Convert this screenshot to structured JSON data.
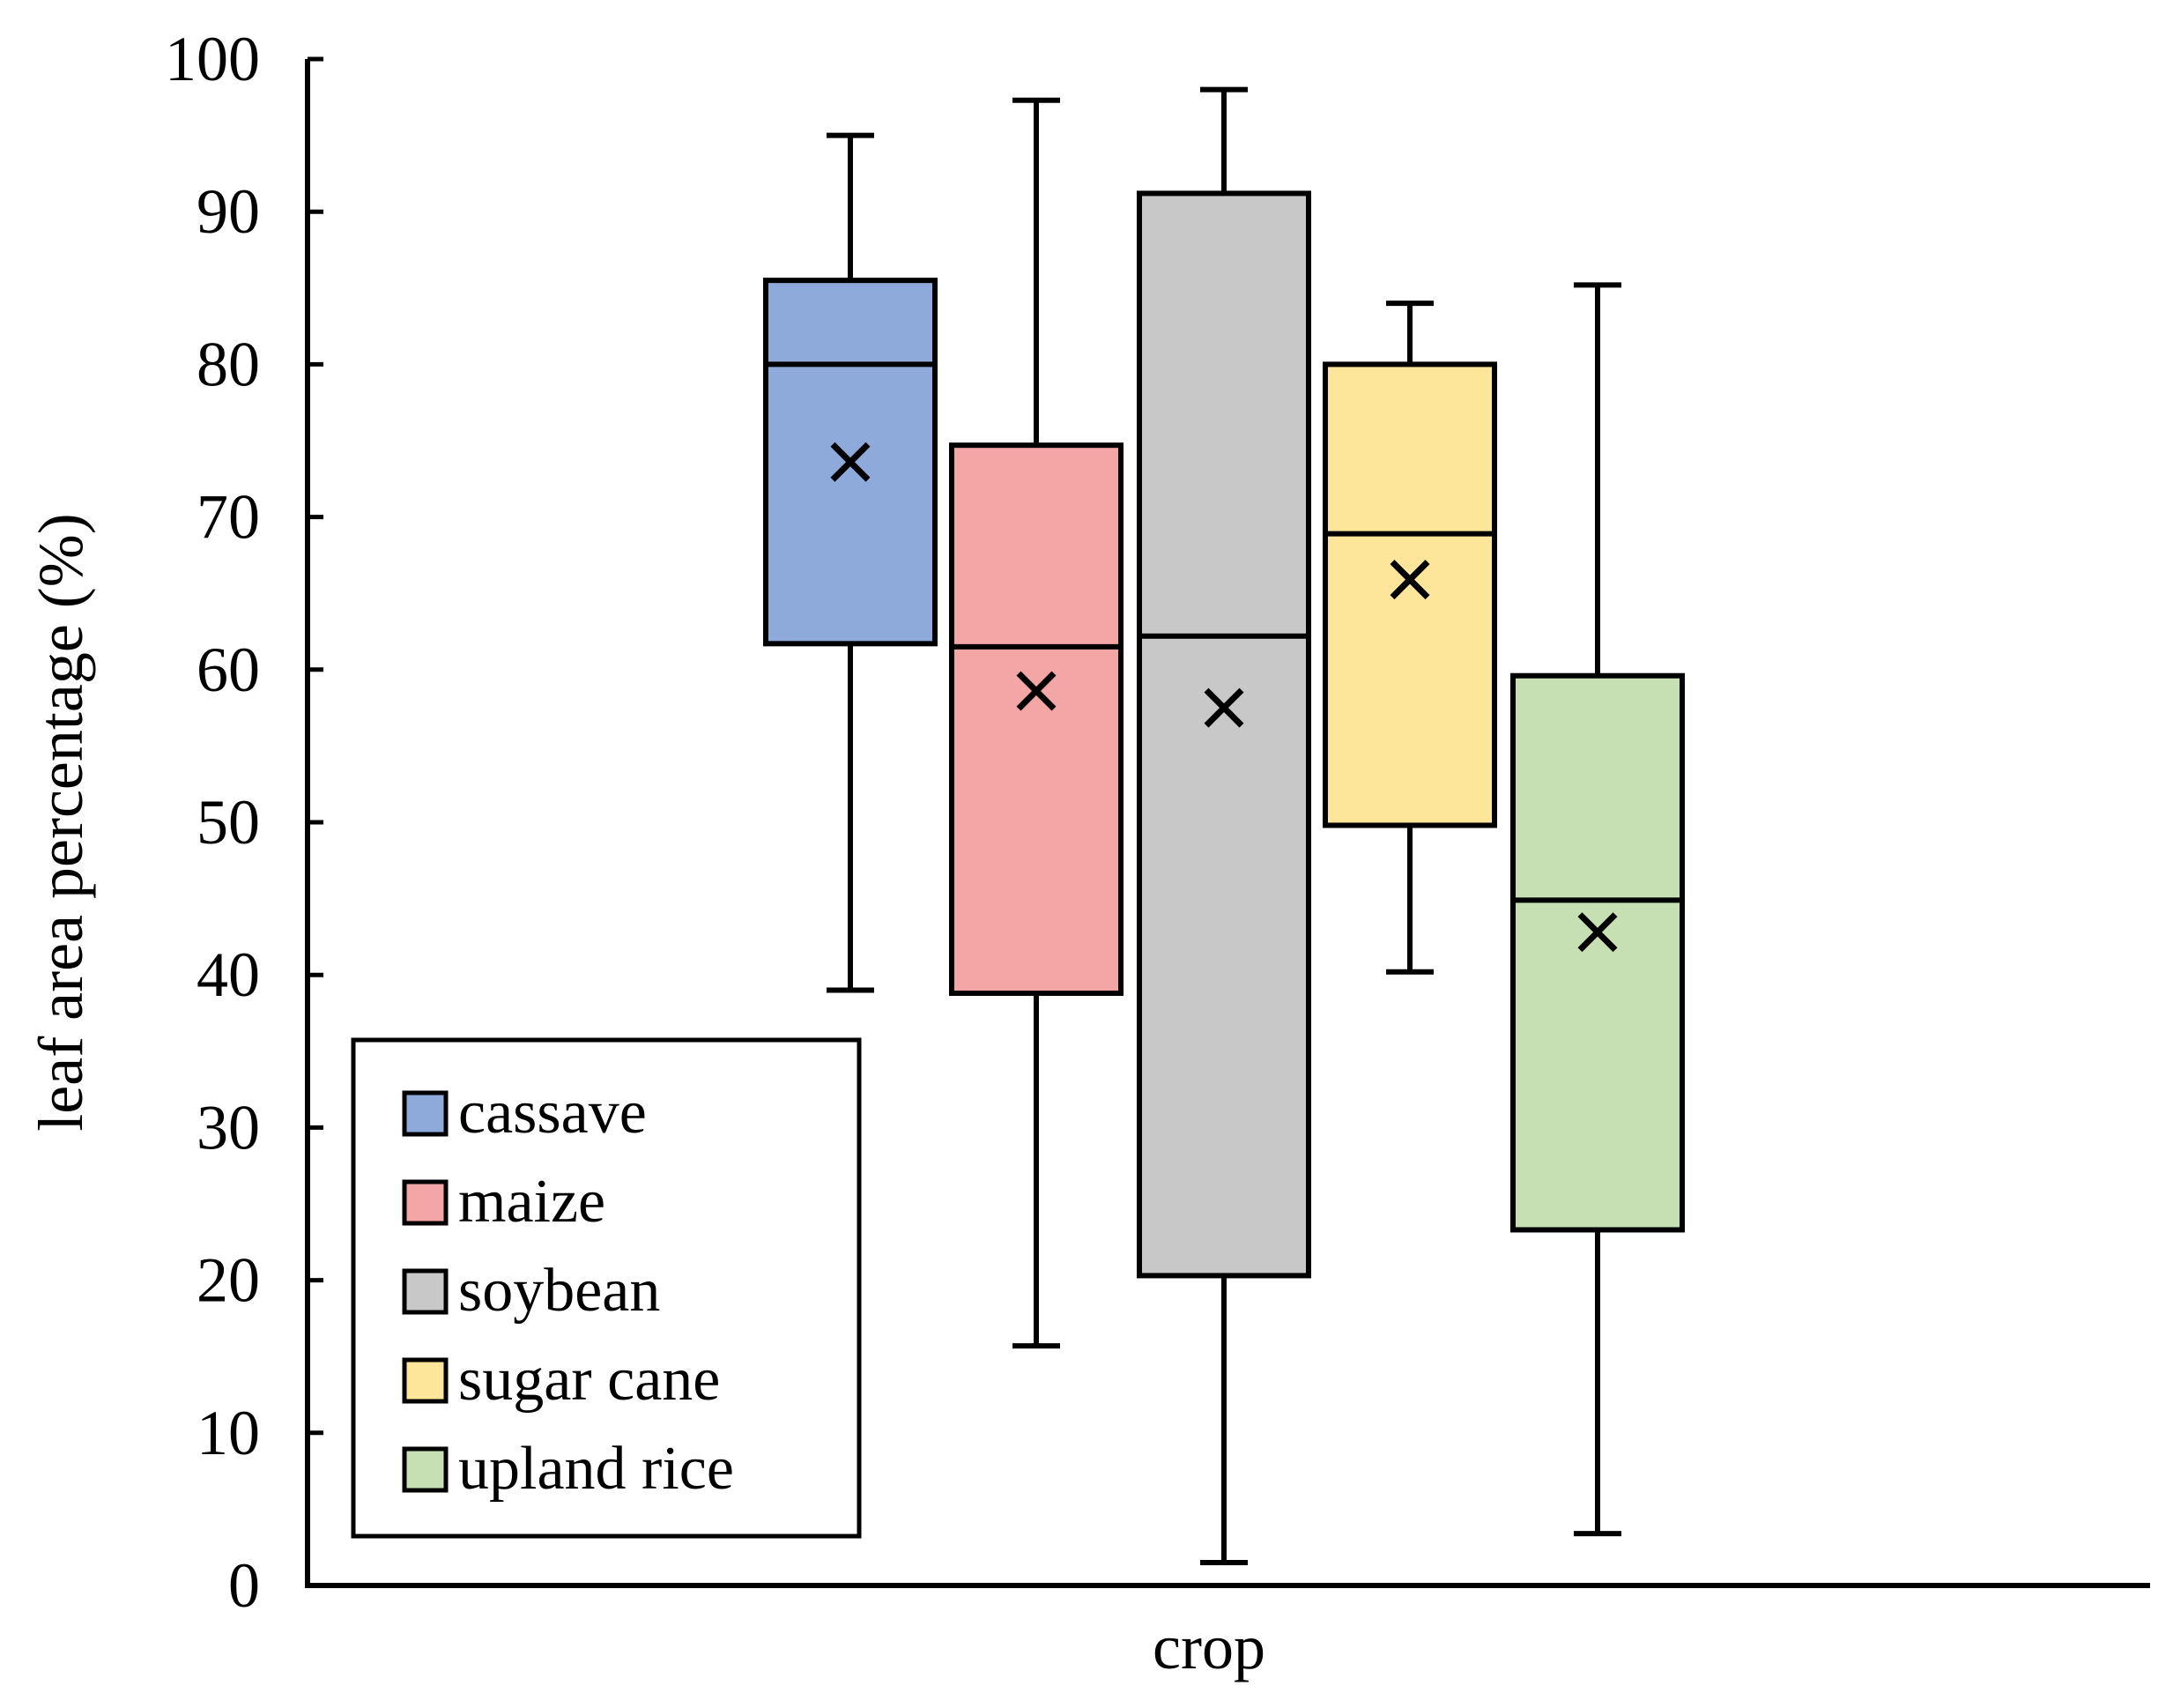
{
  "chart_data": {
    "type": "box",
    "title": "",
    "xlabel": "crop",
    "ylabel": "leaf area percentage (%)",
    "ylim": [
      0,
      100
    ],
    "yticks": [
      0,
      10,
      20,
      30,
      40,
      50,
      60,
      70,
      80,
      90,
      100
    ],
    "grid": false,
    "legend_position": "bottom-left",
    "mean_marker": "×",
    "series": [
      {
        "name": "cassave",
        "color": "#8eaadb",
        "whisker_low": 39,
        "q1": 61.7,
        "median": 80,
        "q3": 85.5,
        "whisker_high": 95,
        "mean": 73.6
      },
      {
        "name": "maize",
        "color": "#f4a6a6",
        "whisker_low": 15.7,
        "q1": 38.8,
        "median": 61.5,
        "q3": 74.7,
        "whisker_high": 97.3,
        "mean": 58.6
      },
      {
        "name": "soybean",
        "color": "#c8c8c8",
        "whisker_low": 1.5,
        "q1": 20.3,
        "median": 62.2,
        "q3": 91.2,
        "whisker_high": 98,
        "mean": 57.5
      },
      {
        "name": "sugar cane",
        "color": "#fde699",
        "whisker_low": 40.2,
        "q1": 49.8,
        "median": 68.9,
        "q3": 80,
        "whisker_high": 84,
        "mean": 65.9
      },
      {
        "name": "upland rice",
        "color": "#c6e0b4",
        "whisker_low": 3.4,
        "q1": 23.3,
        "median": 44.9,
        "q3": 59.6,
        "whisker_high": 85.2,
        "mean": 42.8
      }
    ]
  }
}
